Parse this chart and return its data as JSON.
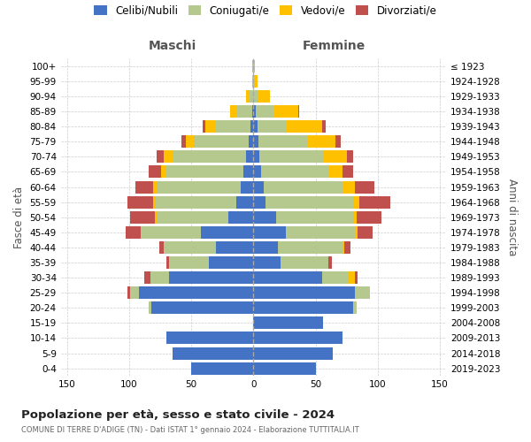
{
  "age_groups": [
    "100+",
    "95-99",
    "90-94",
    "85-89",
    "80-84",
    "75-79",
    "70-74",
    "65-69",
    "60-64",
    "55-59",
    "50-54",
    "45-49",
    "40-44",
    "35-39",
    "30-34",
    "25-29",
    "20-24",
    "15-19",
    "10-14",
    "5-9",
    "0-4"
  ],
  "birth_years": [
    "≤ 1923",
    "1924-1928",
    "1929-1933",
    "1934-1938",
    "1939-1943",
    "1944-1948",
    "1949-1953",
    "1954-1958",
    "1959-1963",
    "1964-1968",
    "1969-1973",
    "1974-1978",
    "1979-1983",
    "1984-1988",
    "1989-1993",
    "1994-1998",
    "1999-2003",
    "2004-2008",
    "2009-2013",
    "2014-2018",
    "2019-2023"
  ],
  "maschi": {
    "celibi": [
      0,
      0,
      0,
      1,
      2,
      4,
      6,
      8,
      10,
      14,
      20,
      42,
      30,
      36,
      68,
      92,
      82,
      0,
      70,
      65,
      50
    ],
    "coniugati": [
      1,
      1,
      3,
      12,
      28,
      44,
      58,
      62,
      68,
      65,
      58,
      48,
      42,
      32,
      15,
      7,
      2,
      0,
      0,
      0,
      0
    ],
    "vedovi": [
      0,
      0,
      3,
      6,
      9,
      6,
      8,
      4,
      3,
      2,
      1,
      1,
      0,
      0,
      0,
      0,
      0,
      0,
      0,
      0,
      0
    ],
    "divorziati": [
      0,
      0,
      0,
      0,
      2,
      4,
      6,
      10,
      14,
      20,
      20,
      12,
      4,
      2,
      5,
      2,
      0,
      0,
      0,
      0,
      0
    ]
  },
  "femmine": {
    "nubili": [
      0,
      0,
      0,
      2,
      3,
      4,
      5,
      6,
      8,
      10,
      18,
      26,
      20,
      22,
      55,
      82,
      80,
      56,
      72,
      64,
      50
    ],
    "coniugate": [
      1,
      1,
      4,
      14,
      24,
      40,
      52,
      54,
      64,
      70,
      62,
      56,
      52,
      38,
      22,
      12,
      3,
      0,
      0,
      0,
      0
    ],
    "vedove": [
      0,
      2,
      9,
      20,
      28,
      22,
      18,
      12,
      10,
      5,
      3,
      2,
      1,
      0,
      5,
      0,
      0,
      0,
      0,
      0,
      0
    ],
    "divorziate": [
      0,
      0,
      0,
      1,
      3,
      4,
      5,
      8,
      15,
      25,
      20,
      12,
      5,
      3,
      2,
      0,
      0,
      0,
      0,
      0,
      0
    ]
  },
  "colors": {
    "celibi_nubili": "#4472c4",
    "coniugati": "#b5c98e",
    "vedovi": "#ffc000",
    "divorziati": "#c0504d"
  },
  "xlim": 155,
  "title": "Popolazione per età, sesso e stato civile - 2024",
  "subtitle": "COMUNE DI TERRE D'ADIGE (TN) - Dati ISTAT 1° gennaio 2024 - Elaborazione TUTTITALIA.IT",
  "xlabel_left": "Maschi",
  "xlabel_right": "Femmine",
  "ylabel_left": "Fasce di età",
  "ylabel_right": "Anni di nascita",
  "legend_labels": [
    "Celibi/Nubili",
    "Coniugati/e",
    "Vedovi/e",
    "Divorziati/e"
  ],
  "bg_color": "#ffffff",
  "grid_color": "#cccccc"
}
